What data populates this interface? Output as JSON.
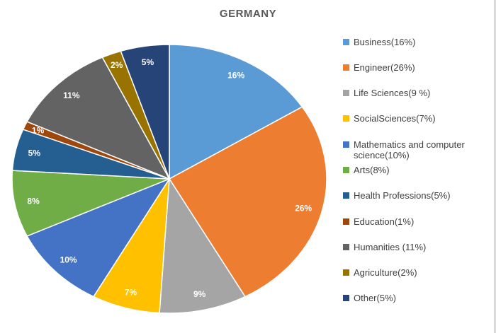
{
  "chart_data": {
    "type": "pie",
    "title": "GERMANY",
    "start": "top",
    "direction": "clockwise",
    "legend_position": "right",
    "slices": [
      {
        "label": "Business",
        "legend": "Business(16%)",
        "value": 16,
        "data_label": "16%",
        "color": "#5B9BD5"
      },
      {
        "label": "Engineer",
        "legend": "Engineer(26%)",
        "value": 26,
        "data_label": "26%",
        "color": "#ED7D31"
      },
      {
        "label": "Life Sciences",
        "legend": "Life Sciences(9 %)",
        "value": 9,
        "data_label": "9%",
        "color": "#A5A5A5"
      },
      {
        "label": "SocialSciences",
        "legend": "SocialSciences(7%)",
        "value": 7,
        "data_label": "7%",
        "color": "#FFC000"
      },
      {
        "label": "Mathematics and computer science",
        "legend": "Mathematics and computer science(10%)",
        "value": 10,
        "data_label": "10%",
        "color": "#4472C4"
      },
      {
        "label": "Arts",
        "legend": "Arts(8%)",
        "value": 8,
        "data_label": "8%",
        "color": "#70AD47"
      },
      {
        "label": "Health Professions",
        "legend": "Health Professions(5%)",
        "value": 5,
        "data_label": "5%",
        "color": "#255E91"
      },
      {
        "label": "Education",
        "legend": "Education(1%)",
        "value": 1,
        "data_label": "1%",
        "color": "#9E480E"
      },
      {
        "label": "Humanities",
        "legend": "Humanities (11%)",
        "value": 11,
        "data_label": "11%",
        "color": "#636363"
      },
      {
        "label": "Agriculture",
        "legend": "Agriculture(2%)",
        "value": 2,
        "data_label": "2%",
        "color": "#997300"
      },
      {
        "label": "Other",
        "legend": "Other(5%)",
        "value": 5,
        "data_label": "5%",
        "color": "#264478"
      }
    ]
  }
}
